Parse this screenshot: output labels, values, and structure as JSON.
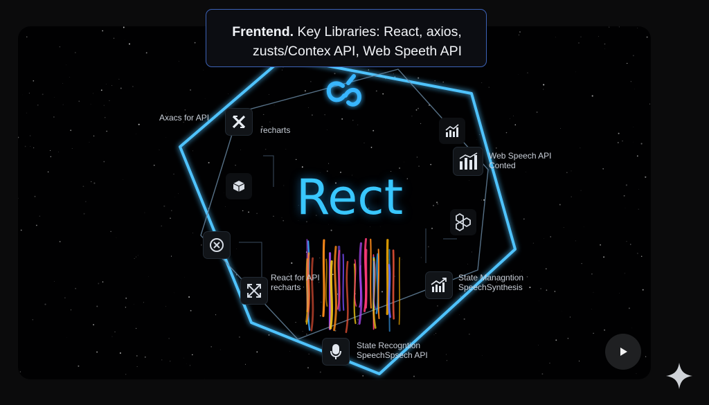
{
  "caption": {
    "bold": "Frentend.",
    "line1_rest": " Key Libraries: React, axios,",
    "line2": "zusts/Contex API, Web Speeth API"
  },
  "center_title": "Rect",
  "labels": {
    "axacs": "Axacs for API",
    "recharts_top": "recharts",
    "web_speech_1": "Web Speech API",
    "web_speech_2": "Conted",
    "react_api_1": "React for API",
    "react_api_2": "recharts",
    "state_mgmt_1": "State Managntion",
    "state_mgmt_2": "SpeechSynthesis",
    "state_recog_1": "State Recogntion",
    "state_recog_2": "SpeechSpsech API"
  },
  "colors": {
    "hex_glow": "#4fc3ff",
    "title": "#39c7ff",
    "caption_border": "#3d63b8"
  },
  "icons": {
    "top": "react-logo-icon",
    "x": "x-logo-icon",
    "cube": "cube-icon",
    "circle_x": "circle-x-icon",
    "expand": "expand-arrows-icon",
    "chart_small": "bar-chart-icon",
    "chart_big": "bar-chart-icon",
    "hexagons": "hexagons-icon",
    "trend": "trend-chart-icon",
    "mic": "microphone-icon",
    "play": "play-icon",
    "sparkle": "sparkle-icon"
  }
}
